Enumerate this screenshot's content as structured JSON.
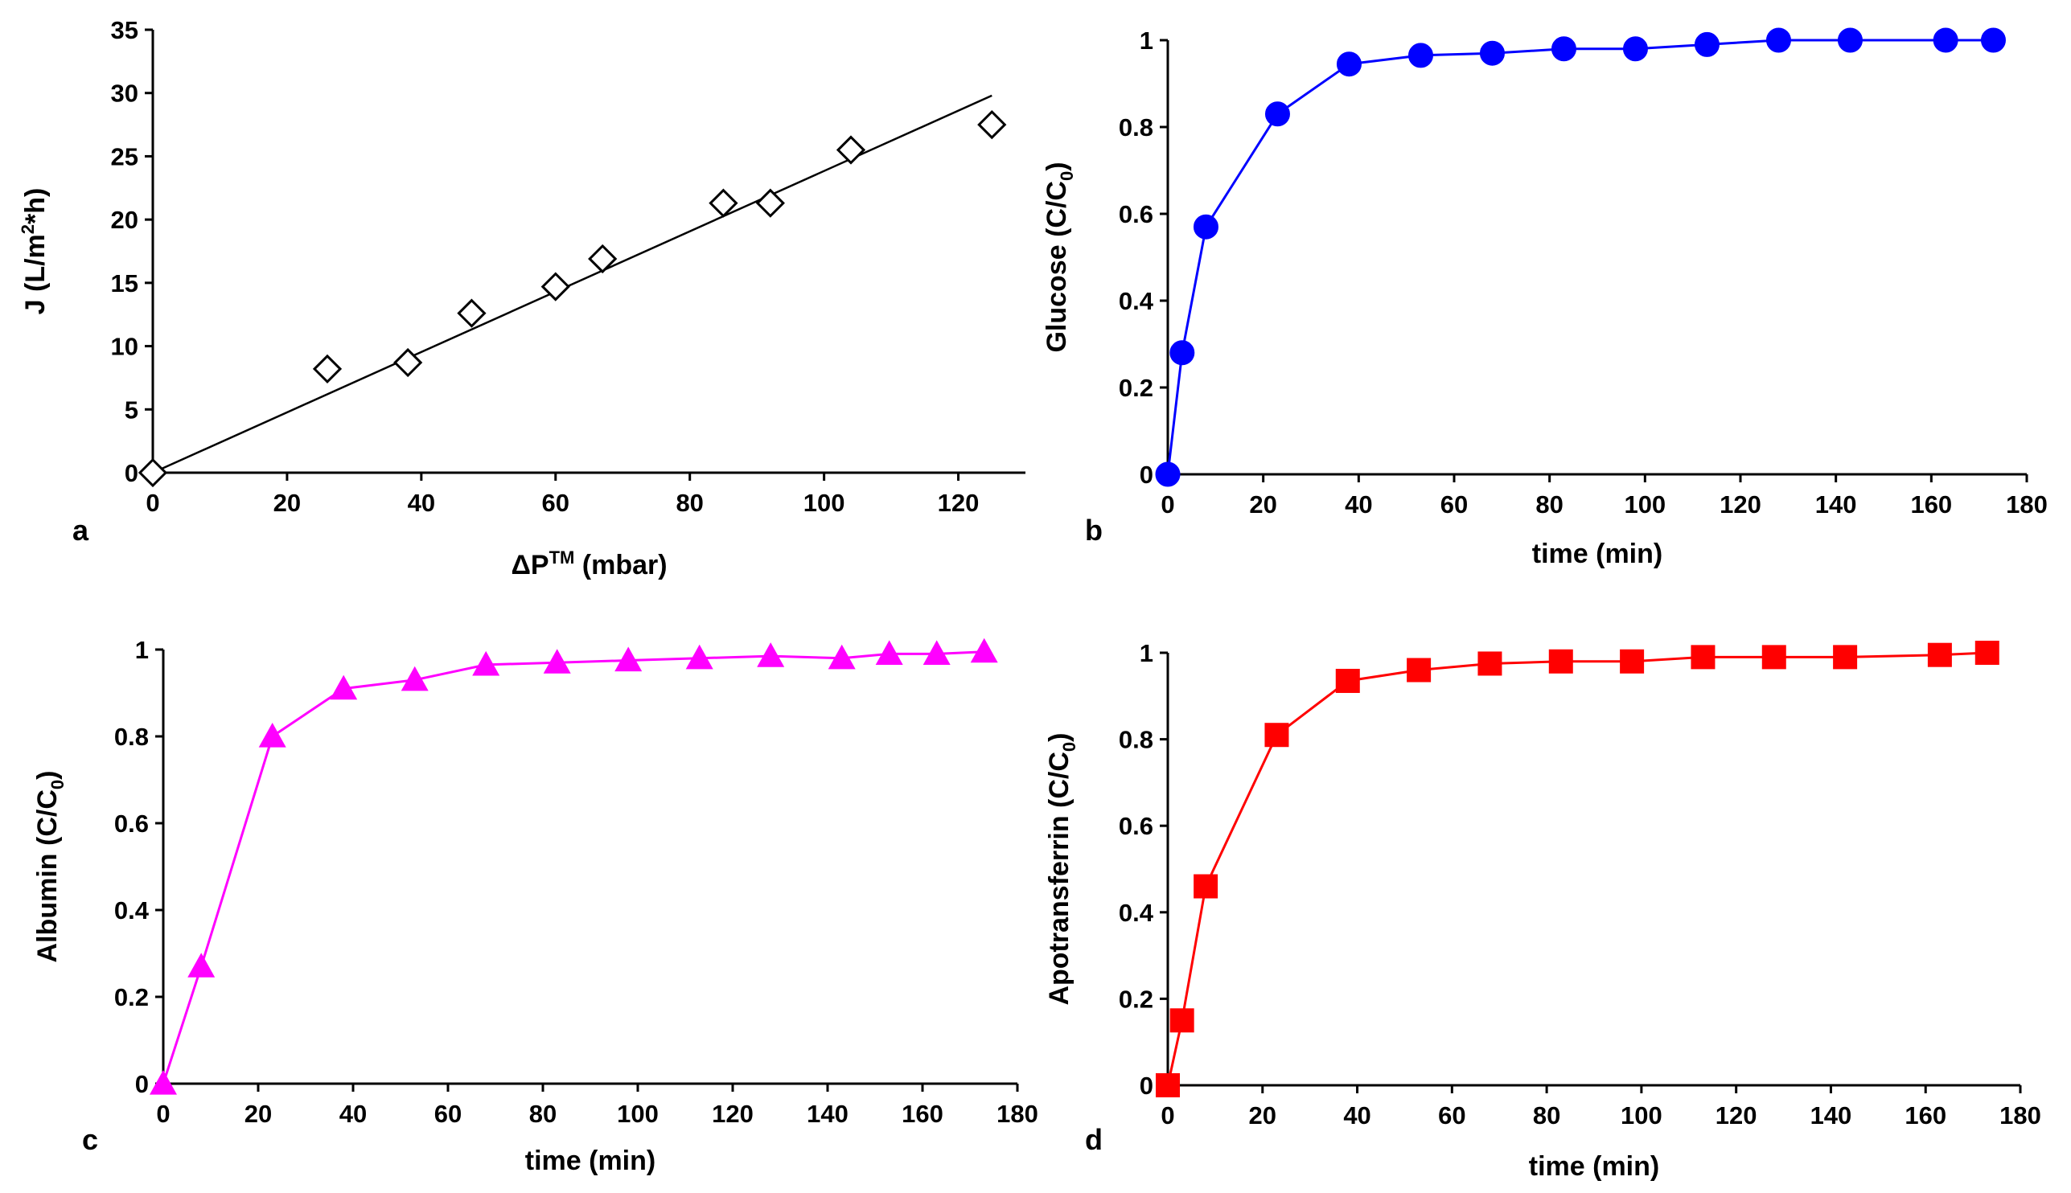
{
  "figure": {
    "panels": [
      "a",
      "b",
      "c",
      "d"
    ]
  },
  "chart_data": [
    {
      "panel_label": "a",
      "type": "scatter",
      "marker": "diamond",
      "color": "#000000",
      "ylabel": {
        "main": "J (L/m",
        "sup": "2",
        "tail": "*h)"
      },
      "xlabel": {
        "main": "ΔP",
        "sup": "TM",
        "tail": " (mbar)"
      },
      "xlim": [
        0,
        130
      ],
      "ylim": [
        0,
        35
      ],
      "xticks": [
        0,
        20,
        40,
        60,
        80,
        100,
        120
      ],
      "yticks": [
        0,
        5,
        10,
        15,
        20,
        25,
        30,
        35
      ],
      "x": [
        0,
        26,
        38,
        47.5,
        60,
        67,
        85,
        92,
        104,
        125
      ],
      "y": [
        0,
        8.2,
        8.7,
        12.6,
        14.7,
        16.9,
        21.3,
        21.3,
        25.5,
        27.5
      ],
      "fit_line": {
        "x": [
          0,
          125
        ],
        "y": [
          0,
          29.8
        ]
      }
    },
    {
      "panel_label": "b",
      "type": "line",
      "marker": "circle",
      "color": "#0000ff",
      "ylabel": {
        "main": "Glucose (C/C",
        "sub": "0",
        "tail": ")"
      },
      "xlabel": {
        "main": "time (min)"
      },
      "xlim": [
        0,
        180
      ],
      "ylim": [
        0,
        1
      ],
      "xticks": [
        0,
        20,
        40,
        60,
        80,
        100,
        120,
        140,
        160,
        180
      ],
      "yticks": [
        0,
        0.2,
        0.4,
        0.6,
        0.8,
        1
      ],
      "x": [
        0,
        3,
        8,
        23,
        38,
        53,
        68,
        83,
        98,
        113,
        128,
        143,
        163,
        173
      ],
      "y": [
        0,
        0.28,
        0.57,
        0.83,
        0.945,
        0.965,
        0.97,
        0.98,
        0.98,
        0.99,
        1.0,
        1.0,
        1.0,
        1.0
      ]
    },
    {
      "panel_label": "c",
      "type": "line",
      "marker": "triangle",
      "color": "#ff00ff",
      "ylabel": {
        "main": "Albumin (C/C",
        "sub": "0",
        "tail": ")"
      },
      "xlabel": {
        "main": "time (min)"
      },
      "xlim": [
        0,
        180
      ],
      "ylim": [
        0,
        1
      ],
      "xticks": [
        0,
        20,
        40,
        60,
        80,
        100,
        120,
        140,
        160,
        180
      ],
      "yticks": [
        0,
        0.2,
        0.4,
        0.6,
        0.8,
        1
      ],
      "x": [
        0,
        8,
        23,
        38,
        53,
        68,
        83,
        98,
        113,
        128,
        143,
        153,
        163,
        173
      ],
      "y": [
        0,
        0.27,
        0.8,
        0.91,
        0.93,
        0.965,
        0.97,
        0.975,
        0.98,
        0.985,
        0.98,
        0.99,
        0.99,
        0.995
      ]
    },
    {
      "panel_label": "d",
      "type": "line",
      "marker": "square",
      "color": "#ff0000",
      "ylabel": {
        "main": "Apotransferrin (C/C",
        "sub": "0",
        "tail": ")"
      },
      "xlabel": {
        "main": "time (min)"
      },
      "xlim": [
        0,
        180
      ],
      "ylim": [
        0,
        1
      ],
      "xticks": [
        0,
        20,
        40,
        60,
        80,
        100,
        120,
        140,
        160,
        180
      ],
      "yticks": [
        0,
        0.2,
        0.4,
        0.6,
        0.8,
        1
      ],
      "x": [
        0,
        3,
        8,
        23,
        38,
        53,
        68,
        83,
        98,
        113,
        128,
        143,
        163,
        173
      ],
      "y": [
        0,
        0.15,
        0.46,
        0.81,
        0.935,
        0.96,
        0.975,
        0.98,
        0.98,
        0.99,
        0.99,
        0.99,
        0.995,
        1.0
      ]
    }
  ]
}
